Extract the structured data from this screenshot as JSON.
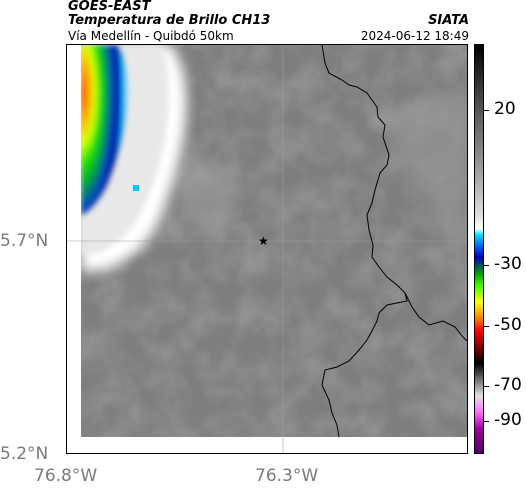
{
  "header": {
    "satellite": "GOES-EAST",
    "product": "Temperatura de Brillo CH13",
    "organization": "SIATA",
    "route": "Vía Medellín - Quibdó 50km",
    "timestamp": "2024-06-12 18:49"
  },
  "axes": {
    "lat_labels": [
      "5.7°N",
      "5.2°N"
    ],
    "lon_labels": [
      "76.8°W",
      "76.3°W"
    ]
  },
  "colorbar": {
    "labels": [
      "20",
      "-30",
      "-50",
      "-70",
      "-90"
    ]
  },
  "marker": {
    "icon": "star-icon"
  },
  "colors": {
    "background_cloud": "#7e7e7e",
    "frame": "#000000"
  }
}
